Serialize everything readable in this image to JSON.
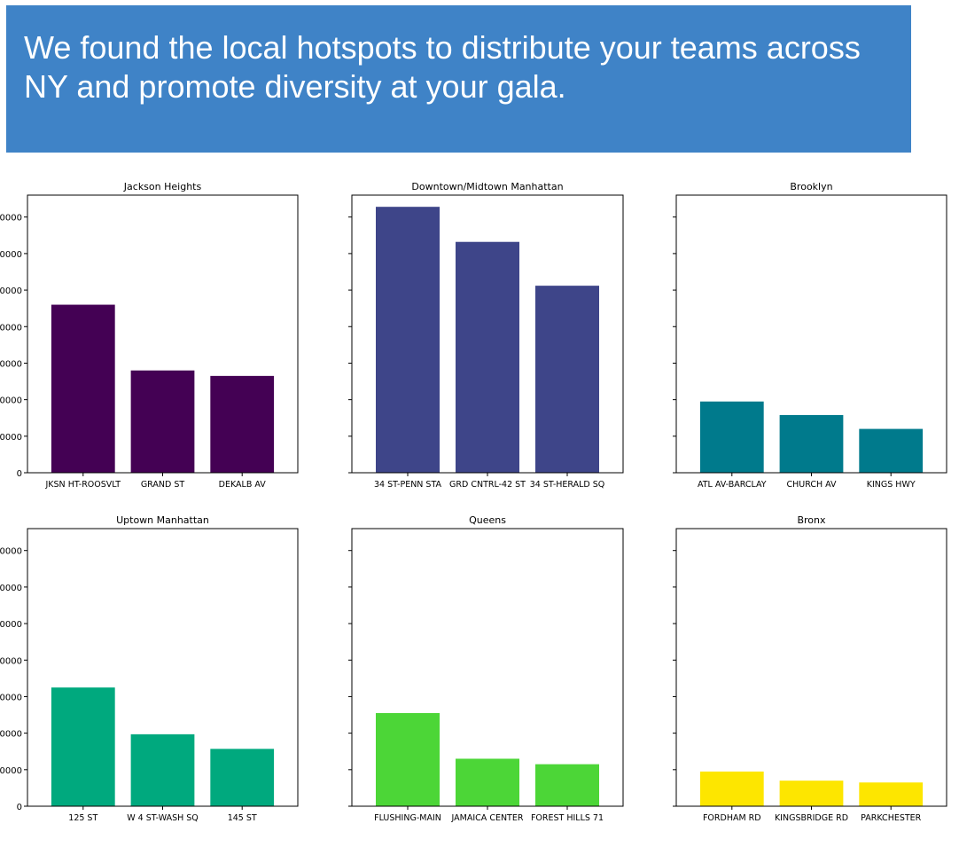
{
  "banner": {
    "text": "We found the local hotspots to distribute your teams across NY and promote diversity at your gala."
  },
  "chart_data": [
    {
      "type": "bar",
      "title": "Jackson Heights",
      "categories": [
        "JKSN HT-ROOSVLT",
        "GRAND ST",
        "DEKALB AV"
      ],
      "values": [
        460000,
        280000,
        265000
      ],
      "ylim": [
        0,
        760000
      ],
      "color": "#440154",
      "yticks": [
        0,
        100000,
        200000,
        300000,
        400000,
        500000,
        600000,
        700000
      ],
      "ytick_labels": [
        "0",
        "0000",
        "0000",
        "0000",
        "0000",
        "0000",
        "0000",
        "0000"
      ]
    },
    {
      "type": "bar",
      "title": "Downtown/Midtown Manhattan",
      "categories": [
        "34 ST-PENN STA",
        "GRD CNTRL-42 ST",
        "34 ST-HERALD SQ"
      ],
      "values": [
        728000,
        632000,
        512000
      ],
      "ylim": [
        0,
        760000
      ],
      "color": "#3e4589"
    },
    {
      "type": "bar",
      "title": "Brooklyn",
      "categories": [
        "ATL AV-BARCLAY",
        "CHURCH AV",
        "KINGS HWY"
      ],
      "values": [
        195000,
        158000,
        120000
      ],
      "ylim": [
        0,
        760000
      ],
      "color": "#007a8c"
    },
    {
      "type": "bar",
      "title": "Uptown Manhattan",
      "categories": [
        "125 ST",
        "W 4 ST-WASH SQ",
        "145 ST"
      ],
      "values": [
        325000,
        197000,
        157000
      ],
      "ylim": [
        0,
        760000
      ],
      "color": "#00a97e",
      "yticks": [
        0,
        100000,
        200000,
        300000,
        400000,
        500000,
        600000,
        700000
      ],
      "ytick_labels": [
        "0",
        "0000",
        "0000",
        "0000",
        "0000",
        "0000",
        "0000",
        "0000"
      ]
    },
    {
      "type": "bar",
      "title": "Queens",
      "categories": [
        "FLUSHING-MAIN",
        "JAMAICA CENTER",
        "FOREST HILLS 71"
      ],
      "values": [
        255000,
        130000,
        115000
      ],
      "ylim": [
        0,
        760000
      ],
      "color": "#4cd637"
    },
    {
      "type": "bar",
      "title": "Bronx",
      "categories": [
        "FORDHAM RD",
        "KINGSBRIDGE RD",
        "PARKCHESTER"
      ],
      "values": [
        95000,
        70000,
        65000
      ],
      "ylim": [
        0,
        760000
      ],
      "color": "#fde600"
    }
  ]
}
